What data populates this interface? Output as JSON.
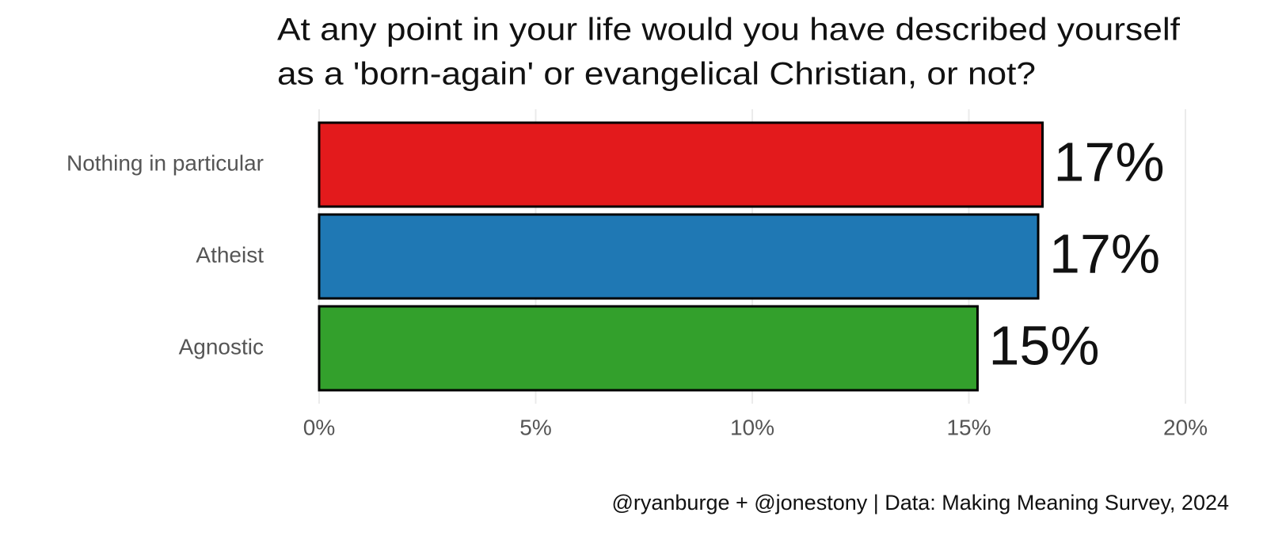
{
  "chart_data": {
    "type": "bar",
    "orientation": "horizontal",
    "title": [
      "At any point in your life would you have described yourself",
      "as a 'born-again' or evangelical Christian, or not?"
    ],
    "categories": [
      "Nothing in particular",
      "Atheist",
      "Agnostic"
    ],
    "values": [
      16.7,
      16.6,
      15.2
    ],
    "value_labels": [
      "17%",
      "17%",
      "15%"
    ],
    "colors": [
      "#e31a1c",
      "#1f78b4",
      "#33a02c"
    ],
    "xlim": [
      0,
      20
    ],
    "xticks": [
      {
        "value": 0,
        "label": "0%"
      },
      {
        "value": 5,
        "label": "5%"
      },
      {
        "value": 10,
        "label": "10%"
      },
      {
        "value": 15,
        "label": "15%"
      },
      {
        "value": 20,
        "label": "20%"
      }
    ],
    "grid": true,
    "caption": "@ryanburge + @jonestony | Data: Making Meaning Survey, 2024"
  }
}
